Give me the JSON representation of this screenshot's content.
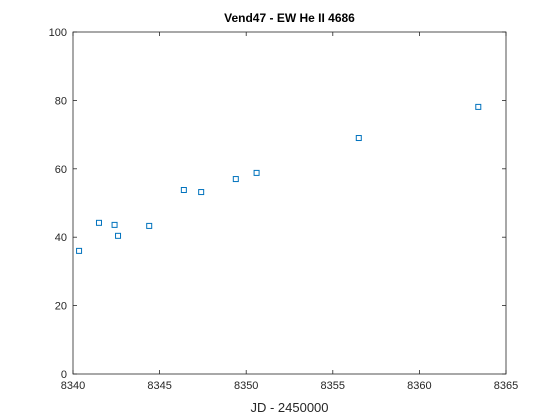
{
  "chart_data": {
    "type": "scatter",
    "title": "Vend47 - EW He II 4686",
    "x_label": "JD - 2450000",
    "x": [
      8340.35,
      8341.5,
      8342.4,
      8342.6,
      8344.4,
      8346.4,
      8347.4,
      8349.4,
      8350.6,
      8356.5,
      8363.4
    ],
    "series": [
      {
        "color": "#0072bd",
        "values": [
          36.0,
          44.2,
          43.6,
          40.4,
          43.3,
          53.8,
          53.2,
          57.0,
          58.8,
          69.0,
          78.1
        ]
      }
    ],
    "xlim": [
      8340,
      8365
    ],
    "xticks": [
      8340,
      8345,
      8350,
      8355,
      8360,
      8365
    ],
    "ylim": [
      0,
      100
    ],
    "yticks": [
      0,
      20,
      40,
      60,
      80,
      100
    ],
    "grid": false
  }
}
